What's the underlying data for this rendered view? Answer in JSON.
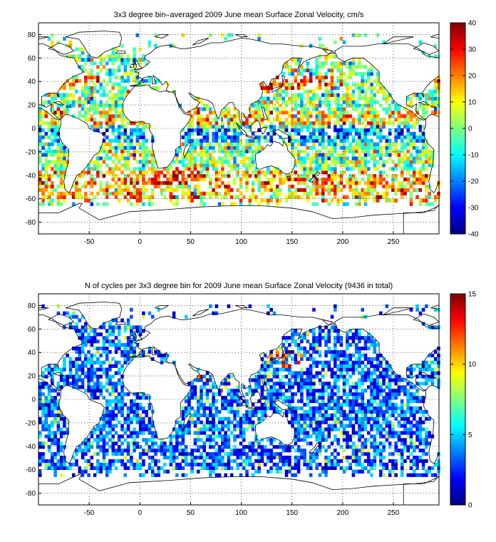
{
  "figure": {
    "panels": [
      {
        "title": "3x3 degree bin–averaged 2009 June mean Surface Zonal Velocity, cm/s",
        "xticks": [
          "-50",
          "0",
          "50",
          "100",
          "150",
          "200",
          "250"
        ],
        "yticks": [
          "80",
          "60",
          "40",
          "20",
          "0",
          "-20",
          "-40",
          "-60",
          "-80"
        ],
        "colorbar_ticks": [
          "40",
          "30",
          "20",
          "10",
          "0",
          "-10",
          "-20",
          "-30",
          "-40"
        ]
      },
      {
        "title": "N of cycles per 3x3 degree bin for 2009 June mean Surface Zonal Velocity (9436 in total)",
        "xticks": [
          "-50",
          "0",
          "50",
          "100",
          "150",
          "200",
          "250"
        ],
        "yticks": [
          "80",
          "60",
          "40",
          "20",
          "0",
          "-20",
          "-40",
          "-60",
          "-80"
        ],
        "colorbar_ticks": [
          "15",
          "10",
          "5",
          "0"
        ]
      }
    ]
  },
  "chart_data": [
    {
      "type": "heatmap",
      "title": "3x3 degree bin–averaged 2009 June mean Surface Zonal Velocity, cm/s",
      "xlabel": "",
      "ylabel": "",
      "xlim": [
        -100,
        295
      ],
      "ylim": [
        -90,
        90
      ],
      "bin_size_deg": 3,
      "colormap": "jet",
      "clim": [
        -40,
        40
      ],
      "colorbar_ticks": [
        40,
        30,
        20,
        10,
        0,
        -10,
        -20,
        -30,
        -40
      ],
      "xticks": [
        -50,
        0,
        50,
        100,
        150,
        200,
        250
      ],
      "yticks": [
        80,
        60,
        40,
        20,
        0,
        -20,
        -40,
        -60,
        -80
      ],
      "grid": true,
      "grid_style": "dotted",
      "background": "coastline map, land unfilled (white)"
    },
    {
      "type": "heatmap",
      "title": "N of cycles per 3x3 degree bin for 2009 June mean Surface Zonal Velocity (9436 in total)",
      "xlabel": "",
      "ylabel": "",
      "xlim": [
        -100,
        295
      ],
      "ylim": [
        -90,
        90
      ],
      "bin_size_deg": 3,
      "colormap": "jet",
      "clim": [
        0,
        15
      ],
      "colorbar_ticks": [
        15,
        10,
        5,
        0
      ],
      "xticks": [
        -50,
        0,
        50,
        100,
        150,
        200,
        250
      ],
      "yticks": [
        80,
        60,
        40,
        20,
        0,
        -20,
        -40,
        -60,
        -80
      ],
      "grid": true,
      "grid_style": "dotted",
      "total_cycles": 9436,
      "background": "coastline map, land unfilled (white)"
    }
  ]
}
